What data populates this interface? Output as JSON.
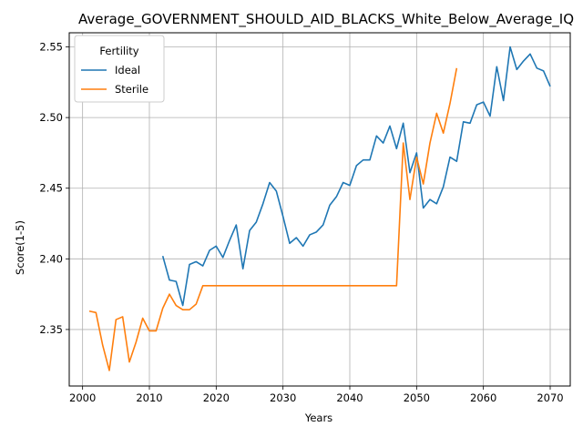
{
  "chart_data": {
    "type": "line",
    "title": "Average_GOVERNMENT_SHOULD_AID_BLACKS_White_Below_Average_IQ",
    "xlabel": "Years",
    "ylabel": "Score(1-5)",
    "xlim": [
      1998,
      2073
    ],
    "ylim": [
      2.31,
      2.56
    ],
    "xticks": [
      2000,
      2010,
      2020,
      2030,
      2040,
      2050,
      2060,
      2070
    ],
    "yticks": [
      2.35,
      2.4,
      2.45,
      2.5,
      2.55
    ],
    "ytick_labels": [
      "2.35",
      "2.40",
      "2.45",
      "2.50",
      "2.55"
    ],
    "grid": true,
    "legend": {
      "title": "Fertility",
      "placement": "top-left"
    },
    "series": [
      {
        "name": "Ideal",
        "color": "#1f77b4",
        "x": [
          2012,
          2013,
          2014,
          2015,
          2016,
          2017,
          2018,
          2019,
          2020,
          2021,
          2022,
          2023,
          2024,
          2025,
          2026,
          2027,
          2028,
          2029,
          2030,
          2031,
          2032,
          2033,
          2034,
          2035,
          2036,
          2037,
          2038,
          2039,
          2040,
          2041,
          2042,
          2043,
          2044,
          2045,
          2046,
          2047,
          2048,
          2049,
          2050,
          2051,
          2052,
          2053,
          2054,
          2055,
          2056,
          2057,
          2058,
          2059,
          2060,
          2061,
          2062,
          2063,
          2064,
          2065,
          2066,
          2067,
          2068,
          2069,
          2070
        ],
        "y": [
          2.402,
          2.385,
          2.384,
          2.367,
          2.396,
          2.398,
          2.395,
          2.406,
          2.409,
          2.401,
          2.413,
          2.424,
          2.393,
          2.42,
          2.426,
          2.439,
          2.454,
          2.448,
          2.43,
          2.411,
          2.415,
          2.409,
          2.417,
          2.419,
          2.424,
          2.438,
          2.444,
          2.454,
          2.452,
          2.466,
          2.47,
          2.47,
          2.487,
          2.482,
          2.494,
          2.478,
          2.496,
          2.461,
          2.475,
          2.436,
          2.442,
          2.439,
          2.451,
          2.472,
          2.469,
          2.497,
          2.496,
          2.509,
          2.511,
          2.501,
          2.536,
          2.512,
          2.55,
          2.534,
          2.54,
          2.545,
          2.535,
          2.533,
          2.522
        ]
      },
      {
        "name": "Sterile",
        "color": "#ff7f0e",
        "x": [
          2001,
          2002,
          2003,
          2004,
          2005,
          2006,
          2007,
          2008,
          2009,
          2010,
          2011,
          2012,
          2013,
          2014,
          2015,
          2016,
          2017,
          2018,
          2019,
          2020,
          2021,
          2022,
          2023,
          2024,
          2025,
          2026,
          2027,
          2028,
          2029,
          2030,
          2031,
          2032,
          2033,
          2034,
          2035,
          2036,
          2037,
          2038,
          2039,
          2040,
          2041,
          2042,
          2043,
          2044,
          2045,
          2046,
          2047,
          2048,
          2049,
          2050,
          2051,
          2052,
          2053,
          2054,
          2055,
          2056
        ],
        "y": [
          2.363,
          2.362,
          2.339,
          2.321,
          2.357,
          2.359,
          2.327,
          2.341,
          2.358,
          2.349,
          2.349,
          2.365,
          2.375,
          2.367,
          2.364,
          2.364,
          2.368,
          2.381,
          2.381,
          2.381,
          2.381,
          2.381,
          2.381,
          2.381,
          2.381,
          2.381,
          2.381,
          2.381,
          2.381,
          2.381,
          2.381,
          2.381,
          2.381,
          2.381,
          2.381,
          2.381,
          2.381,
          2.381,
          2.381,
          2.381,
          2.381,
          2.381,
          2.381,
          2.381,
          2.381,
          2.381,
          2.381,
          2.482,
          2.442,
          2.472,
          2.453,
          2.482,
          2.503,
          2.489,
          2.51,
          2.535
        ]
      }
    ]
  }
}
